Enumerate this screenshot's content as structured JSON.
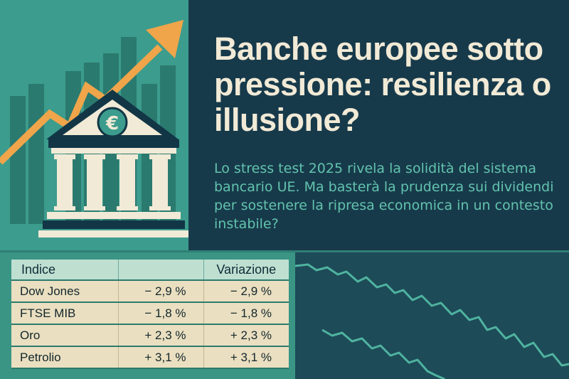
{
  "headline": "Banche europee sotto pressione: resilienza o illusione?",
  "subtitle": "Lo stress test 2025 rivela la solidità del sistema bancario UE. Ma basterà la prudenza sui dividendi per sostenere la ripresa economica in un contesto instabile?",
  "icons": {
    "bank": "bank-building-icon",
    "euro": "euro-coin-icon",
    "trend": "up-arrow-icon"
  },
  "table": {
    "headers": [
      "Indice",
      "",
      "Variazione"
    ],
    "rows": [
      {
        "name": "Dow Jones",
        "change": "− 2,9 %",
        "variation": "− 2,9 %"
      },
      {
        "name": "FTSE MIB",
        "change": "− 1,8 %",
        "variation": "− 1,8 %"
      },
      {
        "name": "Oro",
        "change": "+ 2,3 %",
        "variation": "+ 2,3 %"
      },
      {
        "name": "Petrolio",
        "change": "+ 3,1 %",
        "variation": "+ 3,1 %"
      }
    ]
  },
  "colors": {
    "background_dark": "#173a4b",
    "teal": "#3c9c8d",
    "accent_orange": "#f0a54a",
    "cream": "#f1ead6",
    "subtitle_teal": "#62c3ad"
  }
}
